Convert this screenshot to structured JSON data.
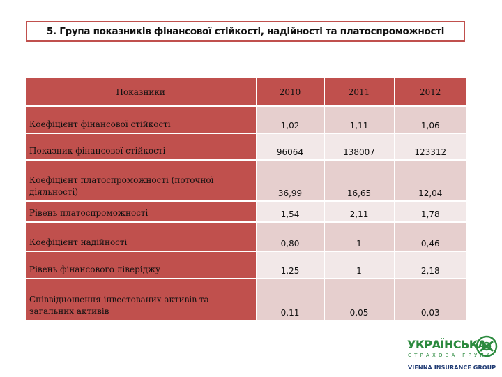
{
  "title": "5. Група показників фінансової стійкості, надійності та платоспроможності",
  "table": {
    "headers": [
      "Показники",
      "2010",
      "2011",
      "2012"
    ],
    "rows": [
      {
        "label": "Коефіцієнт фінансової стійкості",
        "values": [
          "1,02",
          "1,11",
          "1,06"
        ]
      },
      {
        "label": "Показник фінансової стійкості",
        "values": [
          "96064",
          "138007",
          "123312"
        ]
      },
      {
        "label": "Коефіцієнт платоспроможності (поточної діяльності)",
        "values": [
          "36,99",
          "16,65",
          "12,04"
        ]
      },
      {
        "label": "Рівень платоспроможності",
        "values": [
          "1,54",
          "2,11",
          "1,78"
        ]
      },
      {
        "label": "Коефіцієнт надійності",
        "values": [
          "0,80",
          "1",
          "0,46"
        ]
      },
      {
        "label": "Рівень фінансового ліверіджу",
        "values": [
          "1,25",
          "1",
          "2,18"
        ]
      },
      {
        "label": "Співвідношення інвестованих активів та загальних активів",
        "values": [
          "0,11",
          "0,05",
          "0,03"
        ]
      }
    ]
  },
  "logo": {
    "name": "УКРАЇНСЬКА",
    "subtitle": "СТРАХОВА ГРУПА",
    "group": "VIENNA INSURANCE GROUP",
    "brand_color": "#2b8a3e",
    "group_color": "#1f3a73",
    "emblem_icon": "knot-emblem-icon"
  },
  "colors": {
    "header_red": "#c0504d",
    "row_odd": "#e6cfce",
    "row_even": "#f2e8e8"
  }
}
